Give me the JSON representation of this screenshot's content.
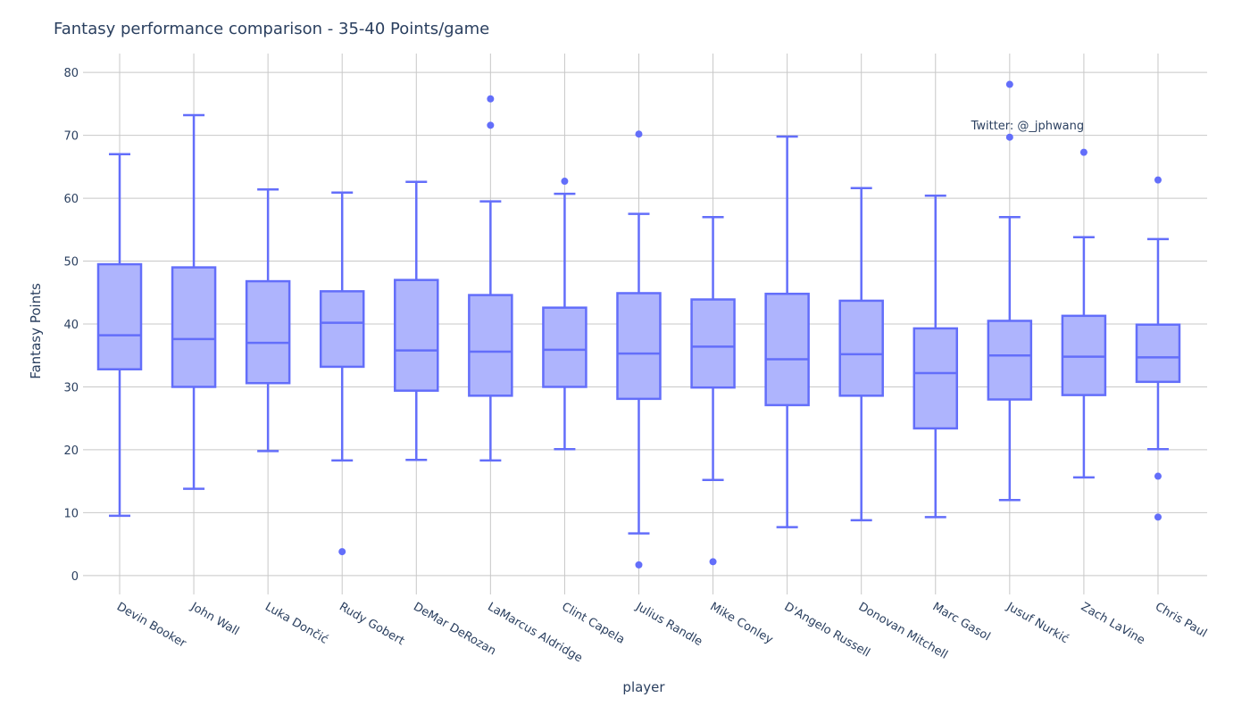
{
  "chart_data": {
    "type": "box",
    "title": "Fantasy performance comparison - 35-40 Points/game",
    "xlabel": "player",
    "ylabel": "Fantasy Points",
    "ylim": [
      -3,
      83
    ],
    "yticks": [
      "0",
      "10",
      "20",
      "30",
      "40",
      "50",
      "60",
      "70",
      "80"
    ],
    "grid": true,
    "colors": {
      "line": "#636efa",
      "fill": "#aeb4fd",
      "grid": "#c8c8c8",
      "text": "#2a3f5f"
    },
    "annotation": {
      "text": "Twitter: @_jphwang",
      "x": "Jusuf Nurkić",
      "y": 71.5
    },
    "categories": [
      "Devin Booker",
      "John Wall",
      "Luka Dončić",
      "Rudy Gobert",
      "DeMar DeRozan",
      "LaMarcus Aldridge",
      "Clint Capela",
      "Julius Randle",
      "Mike Conley",
      "D'Angelo Russell",
      "Donovan Mitchell",
      "Marc Gasol",
      "Jusuf Nurkić",
      "Zach LaVine",
      "Chris Paul"
    ],
    "boxes": [
      {
        "player": "Devin Booker",
        "lower_fence": 9.5,
        "q1": 32.8,
        "median": 38.2,
        "q3": 49.5,
        "upper_fence": 67.0,
        "outliers": []
      },
      {
        "player": "John Wall",
        "lower_fence": 13.8,
        "q1": 30.0,
        "median": 37.6,
        "q3": 49.0,
        "upper_fence": 73.2,
        "outliers": []
      },
      {
        "player": "Luka Dončić",
        "lower_fence": 19.8,
        "q1": 30.6,
        "median": 37.0,
        "q3": 46.8,
        "upper_fence": 61.4,
        "outliers": []
      },
      {
        "player": "Rudy Gobert",
        "lower_fence": 18.3,
        "q1": 33.2,
        "median": 40.2,
        "q3": 45.2,
        "upper_fence": 60.9,
        "outliers": [
          3.8
        ]
      },
      {
        "player": "DeMar DeRozan",
        "lower_fence": 18.4,
        "q1": 29.4,
        "median": 35.8,
        "q3": 47.0,
        "upper_fence": 62.6,
        "outliers": []
      },
      {
        "player": "LaMarcus Aldridge",
        "lower_fence": 18.3,
        "q1": 28.6,
        "median": 35.6,
        "q3": 44.6,
        "upper_fence": 59.5,
        "outliers": [
          71.6,
          75.8
        ]
      },
      {
        "player": "Clint Capela",
        "lower_fence": 20.1,
        "q1": 30.0,
        "median": 35.9,
        "q3": 42.6,
        "upper_fence": 60.7,
        "outliers": [
          62.7
        ]
      },
      {
        "player": "Julius Randle",
        "lower_fence": 6.7,
        "q1": 28.1,
        "median": 35.3,
        "q3": 44.9,
        "upper_fence": 57.5,
        "outliers": [
          1.7,
          70.2
        ]
      },
      {
        "player": "Mike Conley",
        "lower_fence": 15.2,
        "q1": 29.9,
        "median": 36.4,
        "q3": 43.9,
        "upper_fence": 57.0,
        "outliers": [
          2.2
        ]
      },
      {
        "player": "D'Angelo Russell",
        "lower_fence": 7.7,
        "q1": 27.1,
        "median": 34.4,
        "q3": 44.8,
        "upper_fence": 69.8,
        "outliers": []
      },
      {
        "player": "Donovan Mitchell",
        "lower_fence": 8.8,
        "q1": 28.6,
        "median": 35.2,
        "q3": 43.7,
        "upper_fence": 61.6,
        "outliers": []
      },
      {
        "player": "Marc Gasol",
        "lower_fence": 9.3,
        "q1": 23.4,
        "median": 32.2,
        "q3": 39.3,
        "upper_fence": 60.4,
        "outliers": []
      },
      {
        "player": "Jusuf Nurkić",
        "lower_fence": 12.0,
        "q1": 28.0,
        "median": 35.0,
        "q3": 40.5,
        "upper_fence": 57.0,
        "outliers": [
          69.7,
          78.1
        ]
      },
      {
        "player": "Zach LaVine",
        "lower_fence": 15.6,
        "q1": 28.7,
        "median": 34.8,
        "q3": 41.3,
        "upper_fence": 53.8,
        "outliers": [
          67.3
        ]
      },
      {
        "player": "Chris Paul",
        "lower_fence": 20.1,
        "q1": 30.8,
        "median": 34.7,
        "q3": 39.9,
        "upper_fence": 53.5,
        "outliers": [
          9.3,
          15.8,
          62.9
        ]
      }
    ]
  }
}
